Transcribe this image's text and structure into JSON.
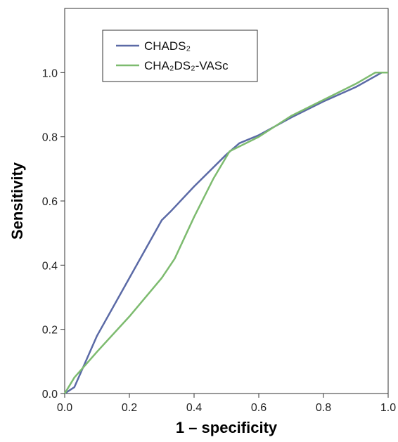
{
  "chart_data": {
    "type": "line",
    "xlabel": "1 – specificity",
    "ylabel": "Sensitivity",
    "xlim": [
      0,
      1
    ],
    "ylim": [
      0,
      1.2
    ],
    "xticks": [
      "0.0",
      "0.2",
      "0.4",
      "0.6",
      "0.8",
      "1.0"
    ],
    "yticks": [
      "0.0",
      "0.2",
      "0.4",
      "0.6",
      "0.8",
      "1.0"
    ],
    "legend_position": "top-left",
    "grid": false,
    "series": [
      {
        "name": "CHADS₂",
        "color": "#5b6aa6",
        "points": [
          [
            0.0,
            0.0
          ],
          [
            0.03,
            0.02
          ],
          [
            0.1,
            0.18
          ],
          [
            0.2,
            0.36
          ],
          [
            0.3,
            0.54
          ],
          [
            0.33,
            0.57
          ],
          [
            0.4,
            0.645
          ],
          [
            0.5,
            0.745
          ],
          [
            0.54,
            0.78
          ],
          [
            0.6,
            0.805
          ],
          [
            0.7,
            0.86
          ],
          [
            0.8,
            0.91
          ],
          [
            0.9,
            0.955
          ],
          [
            0.98,
            1.0
          ],
          [
            1.0,
            1.0
          ]
        ]
      },
      {
        "name": "CHA₂DS₂-VASc",
        "color": "#7dbb6f",
        "points": [
          [
            0.0,
            0.0
          ],
          [
            0.03,
            0.05
          ],
          [
            0.1,
            0.13
          ],
          [
            0.2,
            0.24
          ],
          [
            0.3,
            0.36
          ],
          [
            0.34,
            0.42
          ],
          [
            0.4,
            0.55
          ],
          [
            0.46,
            0.67
          ],
          [
            0.51,
            0.755
          ],
          [
            0.6,
            0.8
          ],
          [
            0.7,
            0.865
          ],
          [
            0.8,
            0.915
          ],
          [
            0.9,
            0.965
          ],
          [
            0.96,
            1.0
          ],
          [
            1.0,
            1.0
          ]
        ]
      }
    ]
  }
}
